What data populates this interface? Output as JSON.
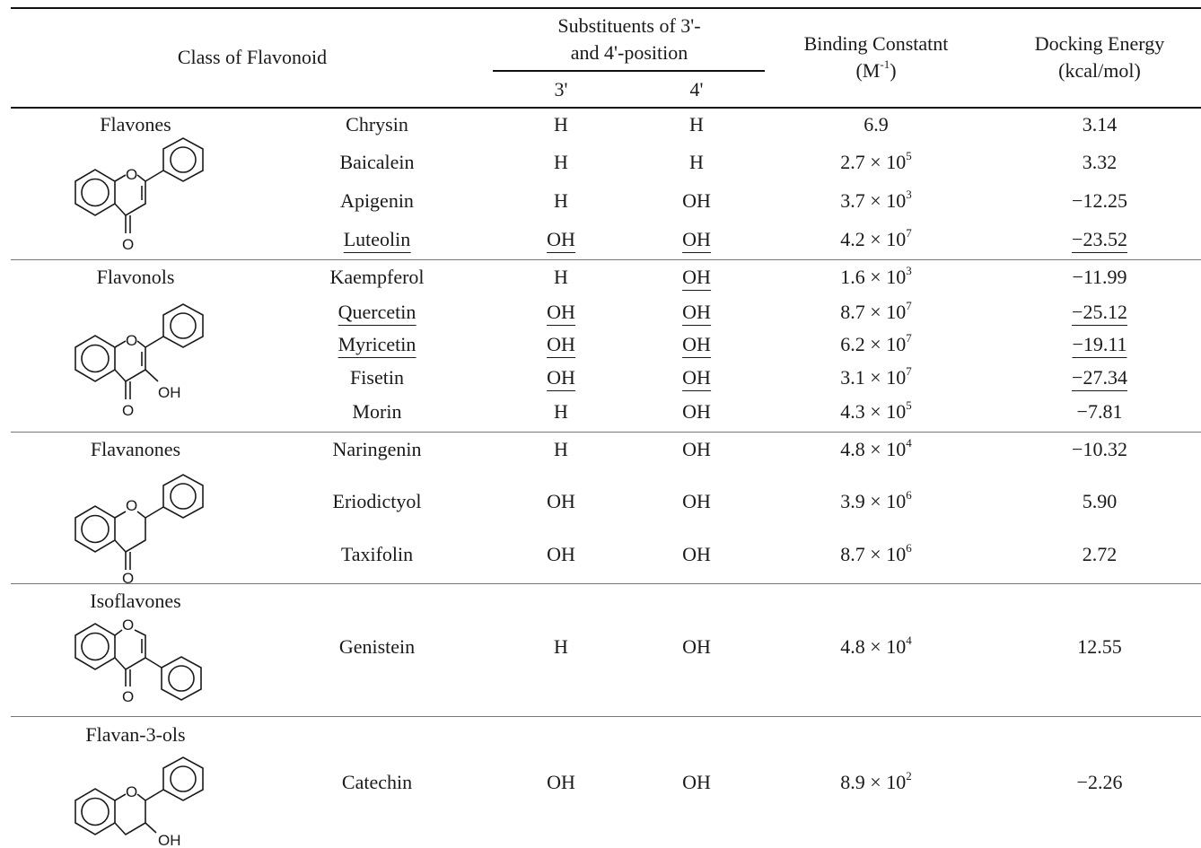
{
  "header": {
    "class_label": "Class of Flavonoid",
    "substituents_line1": "Substituents of 3'-",
    "substituents_line2": "and 4'-position",
    "pos3": "3'",
    "pos4": "4'",
    "binding_line1": "Binding Constatnt",
    "binding_line2_base": "(M",
    "binding_line2_sup": "-1",
    "binding_line2_end": ")",
    "docking_line1": "Docking Energy",
    "docking_line2": "(kcal/mol)"
  },
  "classes": [
    {
      "name": "Flavones",
      "atom_o": "O",
      "atom_ko": "O",
      "atom_oh": ""
    },
    {
      "name": "Flavonols",
      "atom_o": "O",
      "atom_ko": "O",
      "atom_oh": "OH"
    },
    {
      "name": "Flavanones",
      "atom_o": "O",
      "atom_ko": "O",
      "atom_oh": ""
    },
    {
      "name": "Isoflavones",
      "atom_o": "O",
      "atom_ko": "O",
      "atom_oh": ""
    },
    {
      "name": "Flavan-3-ols",
      "atom_o": "O",
      "atom_ko": "",
      "atom_oh": "OH"
    }
  ],
  "rows": [
    {
      "compound": "Chrysin",
      "r3": "H",
      "r4": "H",
      "bc_mant": "6.9",
      "bc_exp": "",
      "energy": "3.14"
    },
    {
      "compound": "Baicalein",
      "r3": "H",
      "r4": "H",
      "bc_mant": "2.7 × 10",
      "bc_exp": "5",
      "energy": "3.32"
    },
    {
      "compound": "Apigenin",
      "r3": "H",
      "r4": "OH",
      "bc_mant": "3.7 × 10",
      "bc_exp": "3",
      "energy": "−12.25"
    },
    {
      "compound": "Luteolin",
      "r3": "OH",
      "r4": "OH",
      "bc_mant": "4.2 × 10",
      "bc_exp": "7",
      "energy": "−23.52"
    },
    {
      "compound": "Kaempferol",
      "r3": "H",
      "r4": "OH",
      "bc_mant": "1.6 × 10",
      "bc_exp": "3",
      "energy": "−11.99"
    },
    {
      "compound": "Quercetin",
      "r3": "OH",
      "r4": "OH",
      "bc_mant": "8.7 × 10",
      "bc_exp": "7",
      "energy": "−25.12"
    },
    {
      "compound": "Myricetin",
      "r3": "OH",
      "r4": "OH",
      "bc_mant": "6.2 × 10",
      "bc_exp": "7",
      "energy": "−19.11"
    },
    {
      "compound": "Fisetin",
      "r3": "OH",
      "r4": "OH",
      "bc_mant": "3.1 × 10",
      "bc_exp": "7",
      "energy": "−27.34"
    },
    {
      "compound": "Morin",
      "r3": "H",
      "r4": "OH",
      "bc_mant": "4.3 × 10",
      "bc_exp": "5",
      "energy": "−7.81"
    },
    {
      "compound": "Naringenin",
      "r3": "H",
      "r4": "OH",
      "bc_mant": "4.8 × 10",
      "bc_exp": "4",
      "energy": "−10.32"
    },
    {
      "compound": "Eriodictyol",
      "r3": "OH",
      "r4": "OH",
      "bc_mant": "3.9 × 10",
      "bc_exp": "6",
      "energy": "5.90"
    },
    {
      "compound": "Taxifolin",
      "r3": "OH",
      "r4": "OH",
      "bc_mant": "8.7 × 10",
      "bc_exp": "6",
      "energy": "2.72"
    },
    {
      "compound": "Genistein",
      "r3": "H",
      "r4": "OH",
      "bc_mant": "4.8 × 10",
      "bc_exp": "4",
      "energy": "12.55"
    },
    {
      "compound": "Catechin",
      "r3": "OH",
      "r4": "OH",
      "bc_mant": "8.9 × 10",
      "bc_exp": "2",
      "energy": "−2.26"
    }
  ]
}
